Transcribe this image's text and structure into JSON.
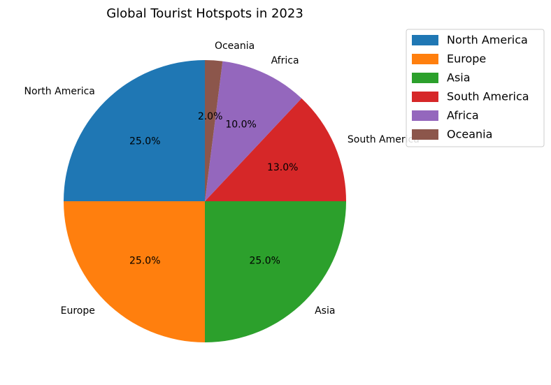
{
  "chart_data": {
    "type": "pie",
    "title": "Global Tourist Hotspots in 2023",
    "categories": [
      "North America",
      "Europe",
      "Asia",
      "South America",
      "Africa",
      "Oceania"
    ],
    "values": [
      25,
      25,
      25,
      13,
      10,
      2
    ],
    "percent_labels": [
      "25.0%",
      "25.0%",
      "25.0%",
      "13.0%",
      "10.0%",
      "2.0%"
    ],
    "colors": [
      "#1f77b4",
      "#ff7f0e",
      "#2ca02c",
      "#d62728",
      "#9467bd",
      "#8c564b"
    ],
    "start_angle_deg": 90,
    "direction": "counterclockwise",
    "legend": {
      "placement": "upper-right-outside",
      "entries": [
        "North America",
        "Europe",
        "Asia",
        "South America",
        "Africa",
        "Oceania"
      ]
    }
  }
}
